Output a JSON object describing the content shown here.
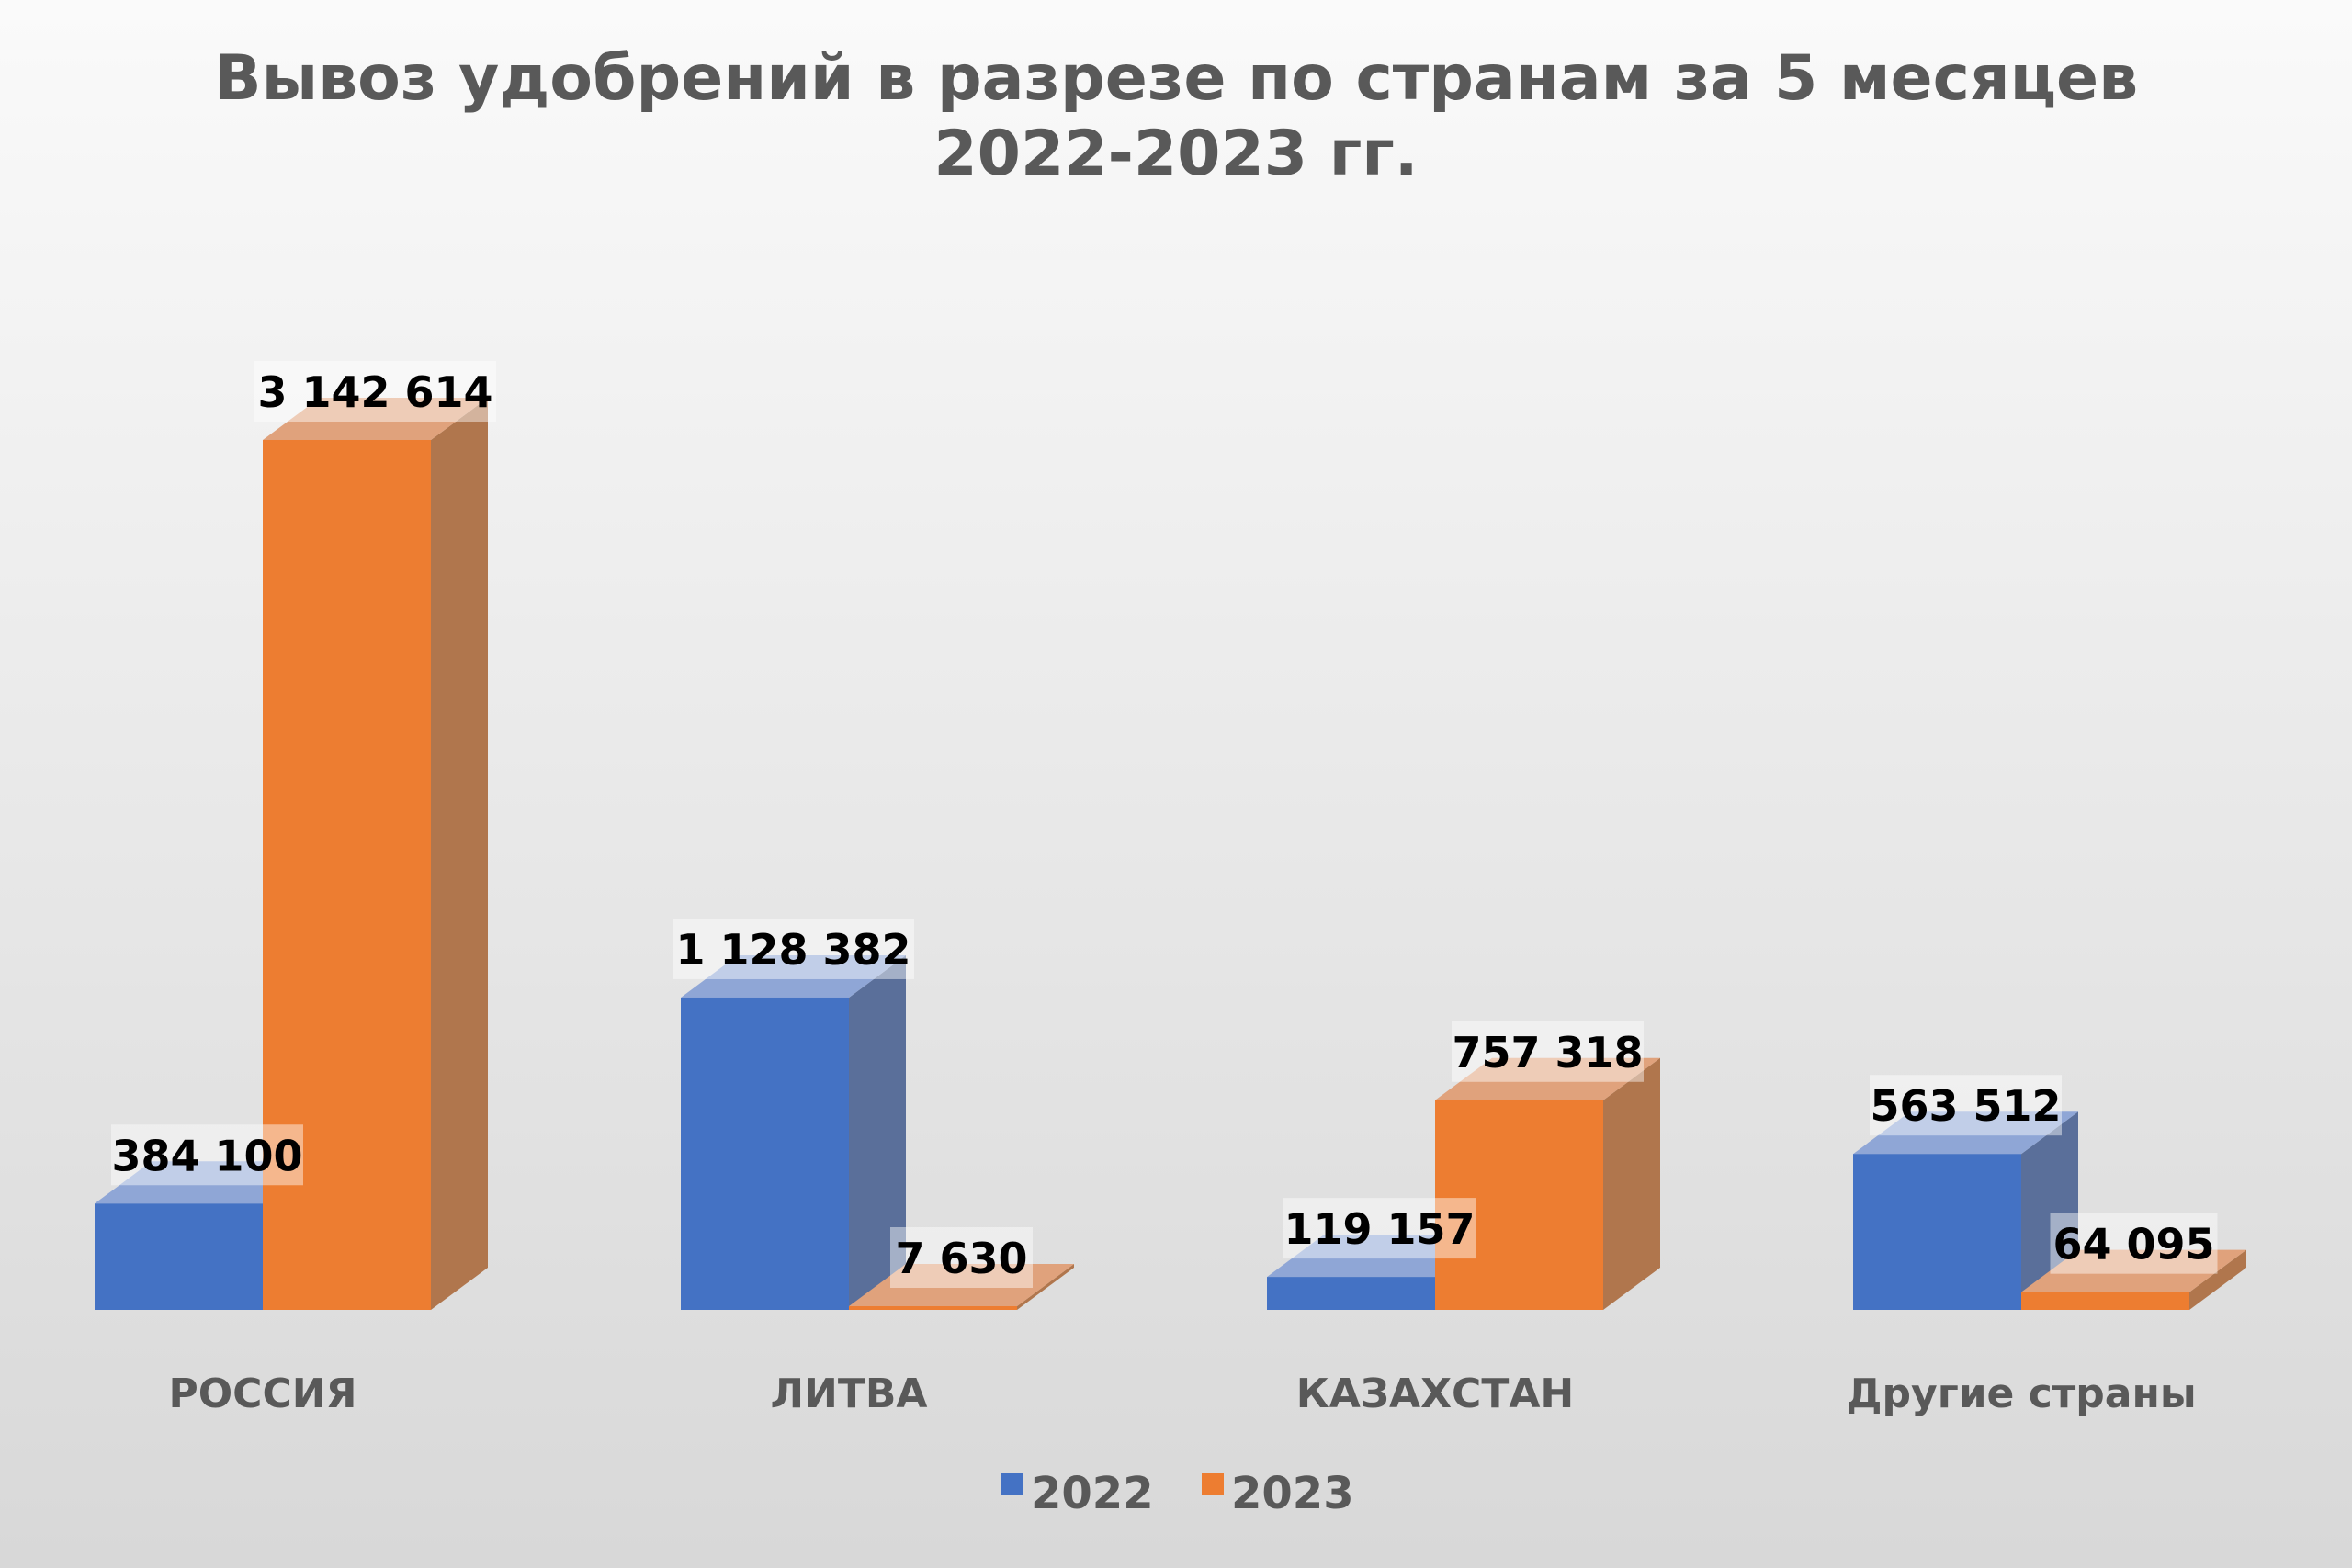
{
  "chart_data": {
    "type": "bar",
    "style": "3d-clustered-column",
    "title": [
      "Вывоз удобрений в разрезе по странам за 5 месяцев",
      "2022-2023 гг."
    ],
    "categories": [
      "РОССИЯ",
      "ЛИТВА",
      "КАЗАХСТАН",
      "Другие страны"
    ],
    "series": [
      {
        "name": "2022",
        "color": "#4472C4",
        "values": [
          384100,
          1128382,
          119157,
          563512
        ],
        "labels": [
          "384 100",
          "1 128 382",
          "119 157",
          "563 512"
        ]
      },
      {
        "name": "2023",
        "color": "#ED7D31",
        "values": [
          3142614,
          7630,
          757318,
          64095
        ],
        "labels": [
          "3 142 614",
          "7 630",
          "757 318",
          "64 095"
        ]
      }
    ],
    "legend": "bottom",
    "grid": false,
    "ylim": [
      0,
      3142614
    ]
  }
}
